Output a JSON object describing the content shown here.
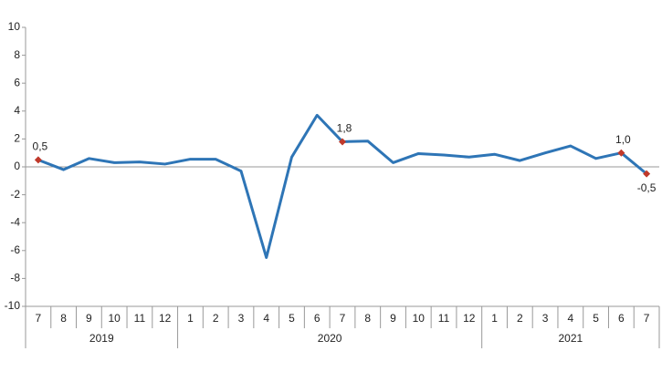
{
  "chart_data": {
    "type": "line",
    "categories": [
      "7",
      "8",
      "9",
      "10",
      "11",
      "12",
      "1",
      "2",
      "3",
      "4",
      "5",
      "6",
      "7",
      "8",
      "9",
      "10",
      "11",
      "12",
      "1",
      "2",
      "3",
      "4",
      "5",
      "6",
      "7"
    ],
    "years": [
      "2019",
      "2020",
      "2021"
    ],
    "series": [
      {
        "color": "#2e75b6",
        "values": [
          0.5,
          -0.2,
          0.6,
          0.3,
          0.35,
          0.2,
          0.55,
          0.55,
          -0.3,
          -6.5,
          0.7,
          3.7,
          1.8,
          1.85,
          0.3,
          0.95,
          0.85,
          0.7,
          0.9,
          0.45,
          1.0,
          1.5,
          0.6,
          1.0,
          -0.5
        ],
        "value_labels": [
          "0,5",
          null,
          null,
          null,
          null,
          null,
          null,
          null,
          null,
          null,
          null,
          null,
          "1,8",
          null,
          null,
          null,
          null,
          null,
          null,
          null,
          null,
          null,
          null,
          "1,0",
          "-0,5"
        ],
        "marker_color": "#c0392b"
      }
    ],
    "ylim": [
      -10,
      10
    ],
    "yticks": [
      -10,
      -8,
      -6,
      -4,
      -2,
      0,
      2,
      4,
      6,
      8,
      10
    ]
  }
}
